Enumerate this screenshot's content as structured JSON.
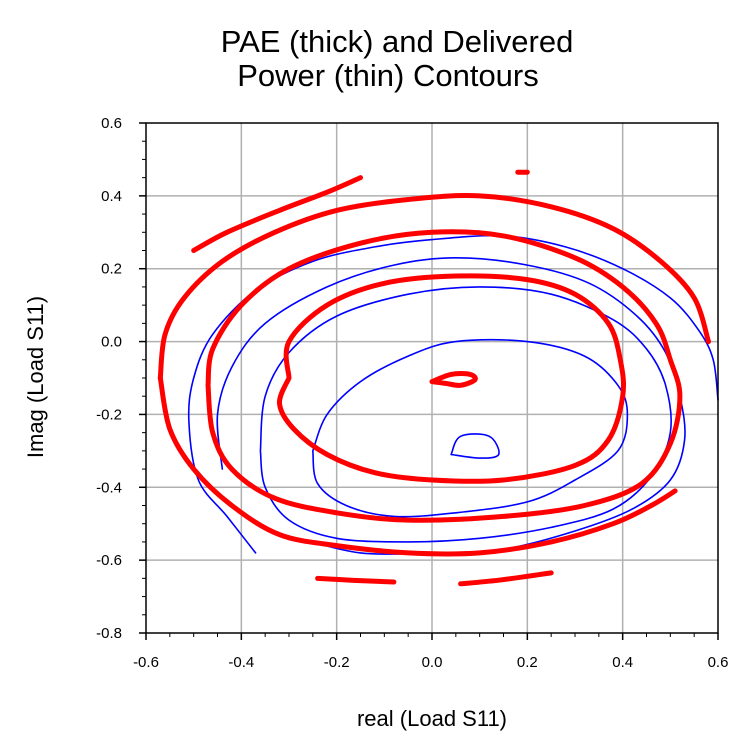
{
  "chart_data": {
    "type": "line",
    "title": [
      "PAE (thick) and Delivered",
      "Power (thin) Contours"
    ],
    "xlabel": "real (Load S11)",
    "ylabel": "Imag (Load S11)",
    "xlim": [
      -0.6,
      0.6
    ],
    "ylim": [
      -0.8,
      0.6
    ],
    "xticks": [
      "-0.6",
      "-0.4",
      "-0.2",
      "0.0",
      "0.2",
      "0.4",
      "0.6"
    ],
    "yticks": [
      "0.6",
      "0.4",
      "0.2",
      "0.0",
      "-0.2",
      "-0.4",
      "-0.6",
      "-0.8"
    ],
    "grid": true,
    "colors": {
      "pae": "#ff0000",
      "power": "#0000ff",
      "grid": "#b0b0b0"
    },
    "series": [
      {
        "group": "pae",
        "points": [
          [
            0.0,
            -0.11
          ],
          [
            0.04,
            -0.09
          ],
          [
            0.08,
            -0.09
          ],
          [
            0.09,
            -0.105
          ],
          [
            0.06,
            -0.12
          ],
          [
            0.03,
            -0.115
          ],
          [
            0.0,
            -0.11
          ]
        ]
      },
      {
        "group": "pae",
        "points": [
          [
            -0.3,
            -0.1
          ],
          [
            -0.3,
            0.0
          ],
          [
            -0.22,
            0.1
          ],
          [
            -0.1,
            0.16
          ],
          [
            0.05,
            0.18
          ],
          [
            0.2,
            0.17
          ],
          [
            0.3,
            0.13
          ],
          [
            0.37,
            0.05
          ],
          [
            0.395,
            -0.05
          ],
          [
            0.4,
            -0.15
          ],
          [
            0.37,
            -0.27
          ],
          [
            0.3,
            -0.34
          ],
          [
            0.15,
            -0.38
          ],
          [
            0.0,
            -0.38
          ],
          [
            -0.12,
            -0.36
          ],
          [
            -0.22,
            -0.31
          ],
          [
            -0.29,
            -0.24
          ],
          [
            -0.32,
            -0.17
          ],
          [
            -0.3,
            -0.1
          ]
        ]
      },
      {
        "group": "pae",
        "points": [
          [
            -0.47,
            -0.12
          ],
          [
            -0.46,
            -0.02
          ],
          [
            -0.4,
            0.1
          ],
          [
            -0.3,
            0.2
          ],
          [
            -0.15,
            0.27
          ],
          [
            0.0,
            0.3
          ],
          [
            0.15,
            0.29
          ],
          [
            0.3,
            0.23
          ],
          [
            0.4,
            0.15
          ],
          [
            0.47,
            0.05
          ],
          [
            0.5,
            -0.05
          ],
          [
            0.52,
            -0.15
          ],
          [
            0.5,
            -0.28
          ],
          [
            0.44,
            -0.39
          ],
          [
            0.32,
            -0.45
          ],
          [
            0.15,
            -0.48
          ],
          [
            -0.05,
            -0.49
          ],
          [
            -0.2,
            -0.47
          ],
          [
            -0.33,
            -0.43
          ],
          [
            -0.42,
            -0.35
          ],
          [
            -0.46,
            -0.25
          ],
          [
            -0.47,
            -0.12
          ]
        ]
      },
      {
        "group": "pae",
        "points": [
          [
            -0.57,
            -0.1
          ],
          [
            -0.56,
            0.02
          ],
          [
            -0.52,
            0.12
          ],
          [
            -0.44,
            0.22
          ],
          [
            -0.33,
            0.3
          ],
          [
            -0.2,
            0.36
          ],
          [
            -0.05,
            0.39
          ],
          [
            0.1,
            0.4
          ],
          [
            0.25,
            0.37
          ],
          [
            0.38,
            0.31
          ],
          [
            0.48,
            0.22
          ],
          [
            0.55,
            0.12
          ],
          [
            0.58,
            0.0
          ]
        ]
      },
      {
        "group": "pae",
        "points": [
          [
            -0.57,
            -0.1
          ],
          [
            -0.55,
            -0.24
          ],
          [
            -0.5,
            -0.35
          ],
          [
            -0.42,
            -0.45
          ],
          [
            -0.32,
            -0.53
          ],
          [
            -0.2,
            -0.56
          ],
          [
            -0.05,
            -0.58
          ],
          [
            0.1,
            -0.58
          ],
          [
            0.25,
            -0.55
          ],
          [
            0.38,
            -0.5
          ],
          [
            0.46,
            -0.45
          ],
          [
            0.51,
            -0.41
          ]
        ]
      },
      {
        "group": "pae",
        "points": [
          [
            -0.5,
            0.25
          ],
          [
            -0.43,
            0.3
          ],
          [
            -0.32,
            0.36
          ],
          [
            -0.22,
            0.41
          ],
          [
            -0.15,
            0.45
          ]
        ]
      },
      {
        "group": "pae",
        "points": [
          [
            -0.24,
            -0.65
          ],
          [
            -0.17,
            -0.655
          ],
          [
            -0.08,
            -0.66
          ]
        ]
      },
      {
        "group": "pae",
        "points": [
          [
            0.06,
            -0.665
          ],
          [
            0.14,
            -0.655
          ],
          [
            0.25,
            -0.635
          ]
        ]
      },
      {
        "group": "pae",
        "points": [
          [
            0.18,
            0.465
          ],
          [
            0.2,
            0.465
          ]
        ]
      },
      {
        "group": "power",
        "points": [
          [
            0.04,
            -0.31
          ],
          [
            0.06,
            -0.26
          ],
          [
            0.12,
            -0.26
          ],
          [
            0.14,
            -0.31
          ],
          [
            0.1,
            -0.32
          ],
          [
            0.04,
            -0.31
          ]
        ]
      },
      {
        "group": "power",
        "points": [
          [
            -0.25,
            -0.3
          ],
          [
            -0.22,
            -0.2
          ],
          [
            -0.15,
            -0.11
          ],
          [
            -0.05,
            -0.04
          ],
          [
            0.05,
            0.0
          ],
          [
            0.2,
            0.0
          ],
          [
            0.32,
            -0.04
          ],
          [
            0.39,
            -0.12
          ],
          [
            0.41,
            -0.2
          ],
          [
            0.39,
            -0.3
          ],
          [
            0.3,
            -0.38
          ],
          [
            0.2,
            -0.44
          ],
          [
            0.05,
            -0.47
          ],
          [
            -0.08,
            -0.48
          ],
          [
            -0.18,
            -0.45
          ],
          [
            -0.24,
            -0.39
          ],
          [
            -0.25,
            -0.3
          ]
        ]
      },
      {
        "group": "power",
        "points": [
          [
            -0.36,
            -0.3
          ],
          [
            -0.35,
            -0.15
          ],
          [
            -0.3,
            -0.03
          ],
          [
            -0.2,
            0.07
          ],
          [
            -0.05,
            0.13
          ],
          [
            0.1,
            0.15
          ],
          [
            0.25,
            0.13
          ],
          [
            0.38,
            0.06
          ],
          [
            0.45,
            -0.02
          ],
          [
            0.49,
            -0.12
          ],
          [
            0.5,
            -0.25
          ],
          [
            0.46,
            -0.37
          ],
          [
            0.38,
            -0.46
          ],
          [
            0.25,
            -0.51
          ],
          [
            0.1,
            -0.54
          ],
          [
            -0.05,
            -0.55
          ],
          [
            -0.2,
            -0.54
          ],
          [
            -0.3,
            -0.49
          ],
          [
            -0.35,
            -0.4
          ],
          [
            -0.36,
            -0.3
          ]
        ]
      },
      {
        "group": "power",
        "points": [
          [
            -0.44,
            -0.35
          ],
          [
            -0.45,
            -0.2
          ],
          [
            -0.42,
            -0.07
          ],
          [
            -0.35,
            0.05
          ],
          [
            -0.22,
            0.15
          ],
          [
            -0.08,
            0.21
          ],
          [
            0.05,
            0.23
          ],
          [
            0.2,
            0.21
          ],
          [
            0.33,
            0.16
          ],
          [
            0.43,
            0.07
          ],
          [
            0.49,
            -0.03
          ],
          [
            0.52,
            -0.15
          ],
          [
            0.53,
            -0.27
          ],
          [
            0.5,
            -0.38
          ],
          [
            0.42,
            -0.46
          ],
          [
            0.3,
            -0.52
          ],
          [
            0.15,
            -0.57
          ],
          [
            0.0,
            -0.58
          ],
          [
            -0.15,
            -0.58
          ],
          [
            -0.28,
            -0.54
          ]
        ]
      },
      {
        "group": "power",
        "points": [
          [
            -0.37,
            -0.58
          ],
          [
            -0.43,
            -0.48
          ],
          [
            -0.49,
            -0.38
          ],
          [
            -0.51,
            -0.22
          ],
          [
            -0.5,
            -0.1
          ],
          [
            -0.46,
            0.02
          ],
          [
            -0.37,
            0.14
          ],
          [
            -0.25,
            0.22
          ],
          [
            -0.12,
            0.26
          ],
          [
            0.0,
            0.28
          ],
          [
            0.15,
            0.29
          ],
          [
            0.28,
            0.26
          ],
          [
            0.4,
            0.2
          ],
          [
            0.5,
            0.12
          ],
          [
            0.56,
            0.03
          ],
          [
            0.59,
            -0.05
          ],
          [
            0.6,
            -0.16
          ]
        ]
      }
    ]
  }
}
